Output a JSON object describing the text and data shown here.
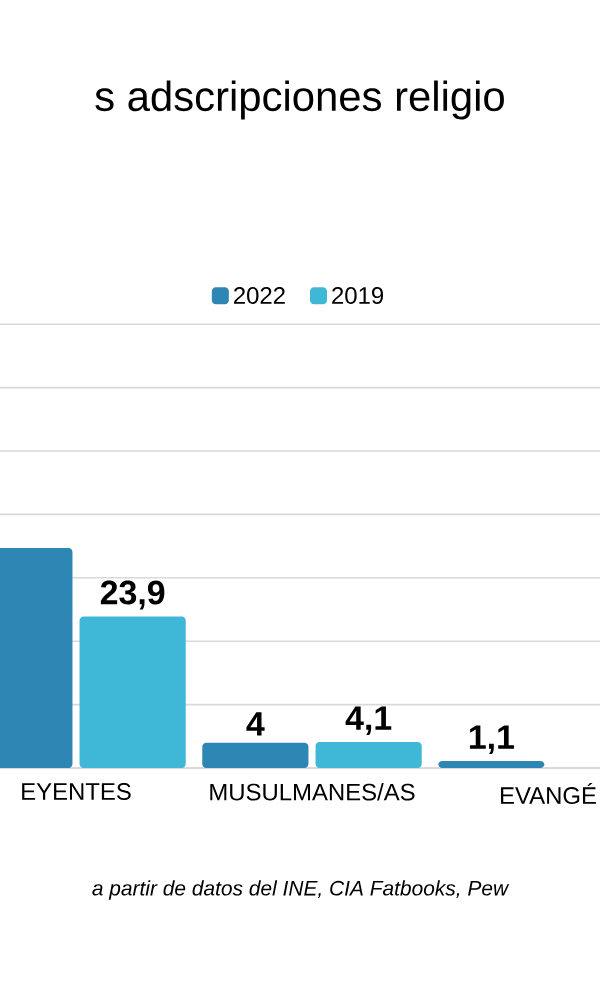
{
  "chart_data": {
    "type": "bar",
    "title": "s adscripciones religio",
    "categories": [
      "EYENTES",
      "MUSULMANES/AS",
      "EVANGÉ"
    ],
    "series": [
      {
        "name": "2022",
        "color": "#2e86b5",
        "values": [
          34.7,
          4,
          1.1
        ],
        "value_labels": [
          null,
          "4",
          "1,1"
        ]
      },
      {
        "name": "2019",
        "color": "#3fb8d8",
        "values": [
          23.9,
          4.1,
          null
        ],
        "value_labels": [
          "23,9",
          "4,1",
          null
        ]
      }
    ],
    "tick_labels": "x",
    "grid": "y",
    "legend": "top",
    "annotations": [
      "a partir de datos del INE, CIA Fatbooks, Pew"
    ]
  }
}
